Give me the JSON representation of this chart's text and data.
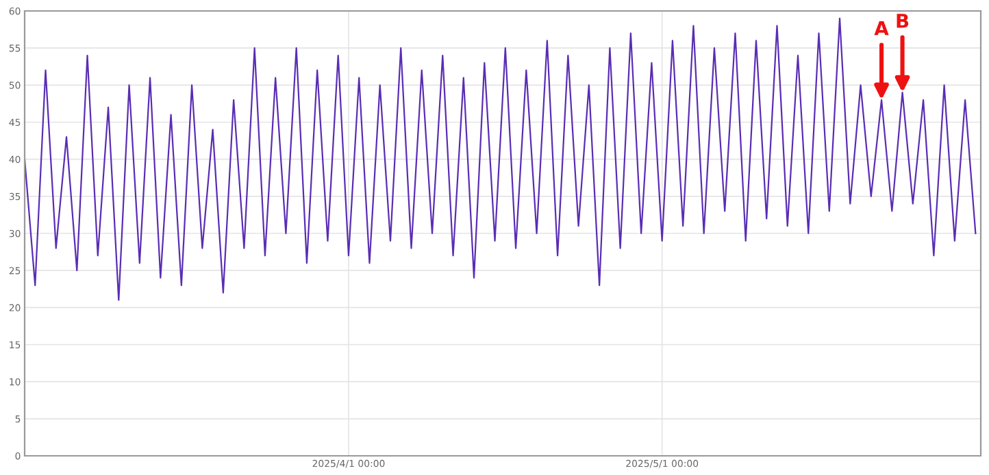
{
  "chart_data": {
    "type": "line",
    "xlim": [
      "2025-03-01",
      "2025-05-31T12:00"
    ],
    "ylim": [
      0,
      60
    ],
    "xticks": [
      {
        "value": "2025-04-01",
        "label": "2025/4/1 00:00"
      },
      {
        "value": "2025-05-01",
        "label": "2025/5/1 00:00"
      }
    ],
    "yticks": [
      0,
      5,
      10,
      15,
      20,
      25,
      30,
      35,
      40,
      45,
      50,
      55,
      60
    ],
    "grid": true,
    "marker": "none",
    "line_style": "solid",
    "x": [
      "2025-03-01",
      "2025-03-02",
      "2025-03-03",
      "2025-03-04",
      "2025-03-05",
      "2025-03-06",
      "2025-03-07",
      "2025-03-08",
      "2025-03-09",
      "2025-03-10",
      "2025-03-11",
      "2025-03-12",
      "2025-03-13",
      "2025-03-14",
      "2025-03-15",
      "2025-03-16",
      "2025-03-17",
      "2025-03-18",
      "2025-03-19",
      "2025-03-20",
      "2025-03-21",
      "2025-03-22",
      "2025-03-23",
      "2025-03-24",
      "2025-03-25",
      "2025-03-26",
      "2025-03-27",
      "2025-03-28",
      "2025-03-29",
      "2025-03-30",
      "2025-03-31",
      "2025-04-01",
      "2025-04-02",
      "2025-04-03",
      "2025-04-04",
      "2025-04-05",
      "2025-04-06",
      "2025-04-07",
      "2025-04-08",
      "2025-04-09",
      "2025-04-10",
      "2025-04-11",
      "2025-04-12",
      "2025-04-13",
      "2025-04-14",
      "2025-04-15",
      "2025-04-16",
      "2025-04-17",
      "2025-04-18",
      "2025-04-19",
      "2025-04-20",
      "2025-04-21",
      "2025-04-22",
      "2025-04-23",
      "2025-04-24",
      "2025-04-25",
      "2025-04-26",
      "2025-04-27",
      "2025-04-28",
      "2025-04-29",
      "2025-04-30",
      "2025-05-01",
      "2025-05-02",
      "2025-05-03",
      "2025-05-04",
      "2025-05-05",
      "2025-05-06",
      "2025-05-07",
      "2025-05-08",
      "2025-05-09",
      "2025-05-10",
      "2025-05-11",
      "2025-05-12",
      "2025-05-13",
      "2025-05-14",
      "2025-05-15",
      "2025-05-16",
      "2025-05-17",
      "2025-05-18",
      "2025-05-19",
      "2025-05-20",
      "2025-05-21",
      "2025-05-22",
      "2025-05-23",
      "2025-05-24",
      "2025-05-25",
      "2025-05-26",
      "2025-05-27",
      "2025-05-28",
      "2025-05-29",
      "2025-05-30",
      "2025-05-31"
    ],
    "series": [
      {
        "color": "#5a2db4",
        "values": [
          40,
          23,
          52,
          28,
          43,
          25,
          54,
          27,
          47,
          21,
          50,
          26,
          51,
          24,
          46,
          23,
          50,
          28,
          44,
          22,
          48,
          28,
          55,
          27,
          51,
          30,
          55,
          26,
          52,
          29,
          54,
          27,
          51,
          26,
          50,
          29,
          55,
          28,
          52,
          30,
          54,
          27,
          51,
          24,
          53,
          29,
          55,
          28,
          52,
          30,
          56,
          27,
          54,
          31,
          50,
          23,
          55,
          28,
          57,
          30,
          53,
          29,
          56,
          31,
          58,
          30,
          55,
          33,
          57,
          29,
          56,
          32,
          58,
          31,
          54,
          30,
          57,
          33,
          59,
          34,
          50,
          35,
          48,
          33,
          49,
          34,
          48,
          27,
          50,
          29,
          48,
          30
        ]
      }
    ],
    "annotations": [
      {
        "text": "A",
        "x": "2025-05-22",
        "y": 48
      },
      {
        "text": "B",
        "x": "2025-05-24",
        "y": 49
      }
    ]
  }
}
